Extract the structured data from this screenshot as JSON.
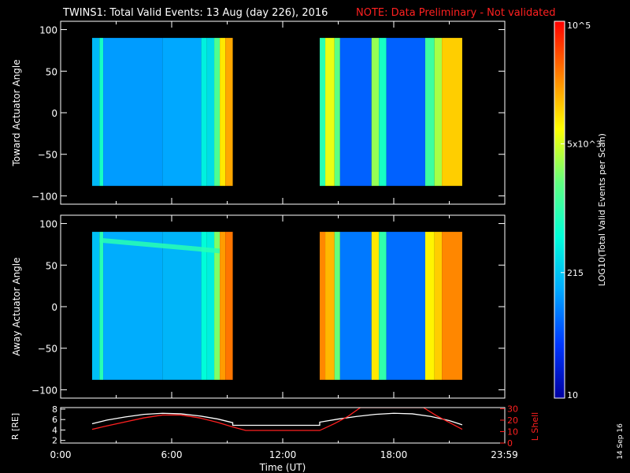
{
  "header": {
    "title": "TWINS1: Total Valid Events: 13 Aug (day 226), 2016",
    "note": "NOTE: Data Preliminary - Not validated",
    "note_color": "#ff2020"
  },
  "colorbar": {
    "label": "LOG10(Total Valid Events per Scan)",
    "ticks": [
      "10",
      "215",
      "5x10^3",
      "10^5"
    ],
    "tick_values": [
      10,
      215,
      5000,
      100000
    ],
    "range": [
      10,
      100000
    ],
    "scale": "log",
    "palette": [
      "#0000a0",
      "#0038ff",
      "#00a8ff",
      "#00ffd8",
      "#60ff80",
      "#ffff00",
      "#ff8000",
      "#ff0000"
    ]
  },
  "footer": {
    "date_stamp": "14 Sep 16"
  },
  "chart_data": [
    {
      "type": "heatmap",
      "panel": "Toward",
      "ylabel": "Toward Actuator Angle",
      "ylim": [
        -110,
        110
      ],
      "yticks": [
        100,
        50,
        0,
        -50,
        -100
      ],
      "xlim": [
        0,
        24
      ],
      "y_extent": [
        -88,
        90
      ],
      "segments": [
        {
          "t_start": 1.7,
          "t_end": 9.3,
          "columns": [
            {
              "t0": 1.7,
              "t1": 2.1,
              "v": 180
            },
            {
              "t0": 2.1,
              "t1": 2.3,
              "v": 700
            },
            {
              "t0": 2.3,
              "t1": 5.5,
              "v": 120
            },
            {
              "t0": 5.5,
              "t1": 7.6,
              "v": 140
            },
            {
              "t0": 7.6,
              "t1": 7.9,
              "v": 420
            },
            {
              "t0": 7.9,
              "t1": 8.3,
              "v": 300
            },
            {
              "t0": 8.3,
              "t1": 8.6,
              "v": 1500
            },
            {
              "t0": 8.6,
              "t1": 8.9,
              "v": 9000
            },
            {
              "t0": 8.9,
              "t1": 9.3,
              "v": 18000
            }
          ]
        },
        {
          "t_start": 14.0,
          "t_end": 21.7,
          "columns": [
            {
              "t0": 14.0,
              "t1": 14.3,
              "v": 900
            },
            {
              "t0": 14.3,
              "t1": 14.8,
              "v": 6000
            },
            {
              "t0": 14.8,
              "t1": 15.1,
              "v": 1800
            },
            {
              "t0": 15.1,
              "t1": 16.8,
              "v": 60
            },
            {
              "t0": 16.8,
              "t1": 17.2,
              "v": 3000
            },
            {
              "t0": 17.2,
              "t1": 17.6,
              "v": 700
            },
            {
              "t0": 17.6,
              "t1": 19.7,
              "v": 60
            },
            {
              "t0": 19.7,
              "t1": 20.2,
              "v": 1200
            },
            {
              "t0": 20.2,
              "t1": 20.6,
              "v": 3500
            },
            {
              "t0": 20.6,
              "t1": 21.7,
              "v": 12000
            }
          ]
        }
      ]
    },
    {
      "type": "heatmap",
      "panel": "Away",
      "ylabel": "Away Actuator Angle",
      "ylim": [
        -110,
        110
      ],
      "yticks": [
        100,
        50,
        0,
        -50,
        -100
      ],
      "xlim": [
        0,
        24
      ],
      "y_extent": [
        -88,
        90
      ],
      "band": {
        "t_start": 2.1,
        "t_end": 8.6,
        "y_start": 80,
        "y_end": 67,
        "v": 900
      },
      "segments": [
        {
          "t_start": 1.7,
          "t_end": 9.3,
          "columns": [
            {
              "t0": 1.7,
              "t1": 2.1,
              "v": 200
            },
            {
              "t0": 2.1,
              "t1": 2.3,
              "v": 900
            },
            {
              "t0": 2.3,
              "t1": 5.5,
              "v": 150
            },
            {
              "t0": 5.5,
              "t1": 7.6,
              "v": 170
            },
            {
              "t0": 7.6,
              "t1": 7.9,
              "v": 500
            },
            {
              "t0": 7.9,
              "t1": 8.3,
              "v": 400
            },
            {
              "t0": 8.3,
              "t1": 8.6,
              "v": 2500
            },
            {
              "t0": 8.6,
              "t1": 8.9,
              "v": 20000
            },
            {
              "t0": 8.9,
              "t1": 9.3,
              "v": 30000
            }
          ]
        },
        {
          "t_start": 14.0,
          "t_end": 21.7,
          "columns": [
            {
              "t0": 14.0,
              "t1": 14.3,
              "v": 25000
            },
            {
              "t0": 14.3,
              "t1": 14.8,
              "v": 15000
            },
            {
              "t0": 14.8,
              "t1": 15.1,
              "v": 2000
            },
            {
              "t0": 15.1,
              "t1": 16.8,
              "v": 80
            },
            {
              "t0": 16.8,
              "t1": 17.2,
              "v": 9000
            },
            {
              "t0": 17.2,
              "t1": 17.6,
              "v": 1000
            },
            {
              "t0": 17.6,
              "t1": 19.7,
              "v": 70
            },
            {
              "t0": 19.7,
              "t1": 20.2,
              "v": 8000
            },
            {
              "t0": 20.2,
              "t1": 20.6,
              "v": 12000
            },
            {
              "t0": 20.6,
              "t1": 21.7,
              "v": 25000
            }
          ]
        }
      ]
    },
    {
      "type": "line",
      "panel": "orbit",
      "ylabel": "R [RE]",
      "ylabel2": "L Shell",
      "xlabel": "Time (UT)",
      "xlim": [
        0,
        24
      ],
      "xticks": [
        "0:00",
        "6:00",
        "12:00",
        "18:00",
        "23:59"
      ],
      "xtick_values": [
        0,
        6,
        12,
        18,
        23.98
      ],
      "ylim": [
        1.5,
        8.3
      ],
      "yticks": [
        2,
        4,
        6,
        8
      ],
      "y2lim": [
        0,
        31
      ],
      "y2ticks": [
        0,
        10,
        20,
        30
      ],
      "series": [
        {
          "axis": "left",
          "color": "#ffffff",
          "x": [
            1.7,
            2.5,
            3.5,
            4.5,
            5.5,
            6.5,
            7.5,
            8.5,
            9.3,
            9.3,
            14.0,
            14.0,
            15.0,
            16.0,
            17.0,
            18.0,
            19.0,
            20.0,
            21.0,
            21.7
          ],
          "y": [
            5.2,
            5.9,
            6.5,
            7.0,
            7.2,
            7.1,
            6.7,
            6.1,
            5.4,
            4.9,
            4.9,
            5.5,
            6.1,
            6.6,
            7.0,
            7.2,
            7.1,
            6.6,
            5.8,
            5.0
          ]
        },
        {
          "axis": "right",
          "color": "#ff2020",
          "x": [
            1.7,
            2.5,
            3.5,
            4.5,
            5.5,
            6.5,
            7.5,
            8.5,
            9.3,
            10.0,
            12.0,
            14.0,
            14.8,
            15.5,
            16.2,
            19.6,
            20.3,
            21.7
          ],
          "y": [
            12,
            15,
            18.5,
            22,
            24.5,
            24.5,
            22,
            18,
            14,
            11,
            11,
            11,
            17,
            23,
            31,
            31,
            24,
            12
          ]
        }
      ]
    }
  ]
}
